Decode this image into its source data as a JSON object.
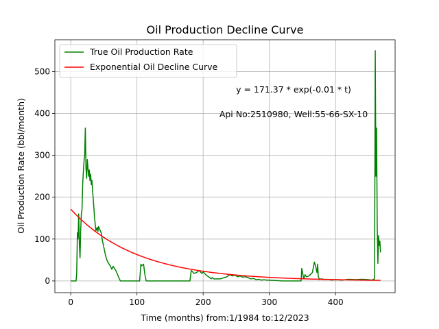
{
  "chart_data": {
    "type": "line",
    "title": "Oil Production Decline Curve",
    "xlabel": "Time (months) from:1/1984 to:12/2023",
    "ylabel": "Oil Production Rate (bbl/month)",
    "xlim": [
      -24,
      490
    ],
    "ylim": [
      -28,
      576
    ],
    "xticks": [
      0,
      100,
      200,
      300,
      400
    ],
    "yticks": [
      0,
      100,
      200,
      300,
      400,
      500
    ],
    "grid": true,
    "legend_position": "top-left",
    "annotations": [
      {
        "text": "y = 171.37 * exp(-0.01 * t)",
        "x": 336,
        "y": 455
      },
      {
        "text": "Api No:2510980, Well:55-66-SX-10",
        "x": 336,
        "y": 398
      }
    ],
    "series": [
      {
        "name": "True Oil Production Rate",
        "color": "#008000",
        "x": [
          0,
          4,
          8,
          9,
          10,
          11,
          12,
          13,
          14,
          15,
          16,
          17,
          18,
          19,
          20,
          21,
          22,
          23,
          24,
          25,
          26,
          27,
          28,
          29,
          30,
          31,
          32,
          33,
          34,
          36,
          38,
          40,
          41,
          42,
          44,
          46,
          48,
          50,
          52,
          54,
          56,
          58,
          60,
          62,
          64,
          66,
          68,
          70,
          72,
          75,
          78,
          80,
          82,
          84,
          88,
          92,
          96,
          100,
          104,
          106,
          107,
          110,
          112,
          114,
          116,
          120,
          140,
          160,
          175,
          180,
          182,
          184,
          186,
          190,
          194,
          198,
          200,
          204,
          208,
          210,
          212,
          214,
          216,
          220,
          226,
          232,
          236,
          240,
          244,
          248,
          252,
          256,
          260,
          264,
          268,
          272,
          276,
          280,
          284,
          288,
          292,
          296,
          300,
          320,
          340,
          348,
          349,
          352,
          354,
          356,
          360,
          365,
          368,
          370,
          372,
          373,
          374,
          376,
          378,
          380,
          382,
          384,
          386,
          388,
          390,
          392,
          394,
          400,
          410,
          420,
          430,
          440,
          450,
          455,
          459,
          460,
          461,
          462,
          463,
          464,
          465,
          466,
          467,
          468
        ],
        "y": [
          0,
          0,
          0,
          18,
          115,
          100,
          160,
          88,
          55,
          120,
          160,
          170,
          230,
          260,
          285,
          300,
          365,
          270,
          245,
          290,
          270,
          250,
          265,
          240,
          255,
          230,
          240,
          215,
          195,
          150,
          120,
          128,
          118,
          130,
          122,
          115,
          95,
          80,
          65,
          52,
          45,
          40,
          35,
          28,
          35,
          30,
          25,
          18,
          10,
          0,
          0,
          0,
          0,
          0,
          0,
          0,
          0,
          0,
          0,
          40,
          36,
          40,
          15,
          0,
          0,
          0,
          0,
          0,
          0,
          0,
          25,
          22,
          18,
          20,
          25,
          18,
          22,
          15,
          10,
          8,
          5,
          8,
          5,
          5,
          5,
          8,
          10,
          15,
          12,
          14,
          10,
          12,
          9,
          10,
          8,
          5,
          6,
          3,
          4,
          2,
          3,
          2,
          2,
          0,
          0,
          0,
          30,
          5,
          15,
          10,
          12,
          20,
          45,
          35,
          20,
          40,
          10,
          3,
          5,
          5,
          3,
          4,
          3,
          4,
          3,
          3,
          2,
          3,
          2,
          4,
          3,
          4,
          3,
          2,
          5,
          550,
          250,
          365,
          130,
          42,
          108,
          85,
          95,
          68
        ]
      },
      {
        "name": "Exponential Oil Decline Curve",
        "color": "#ff0000",
        "a": 171.37,
        "b": 0.01,
        "x_start": 0,
        "x_end": 468
      }
    ]
  }
}
